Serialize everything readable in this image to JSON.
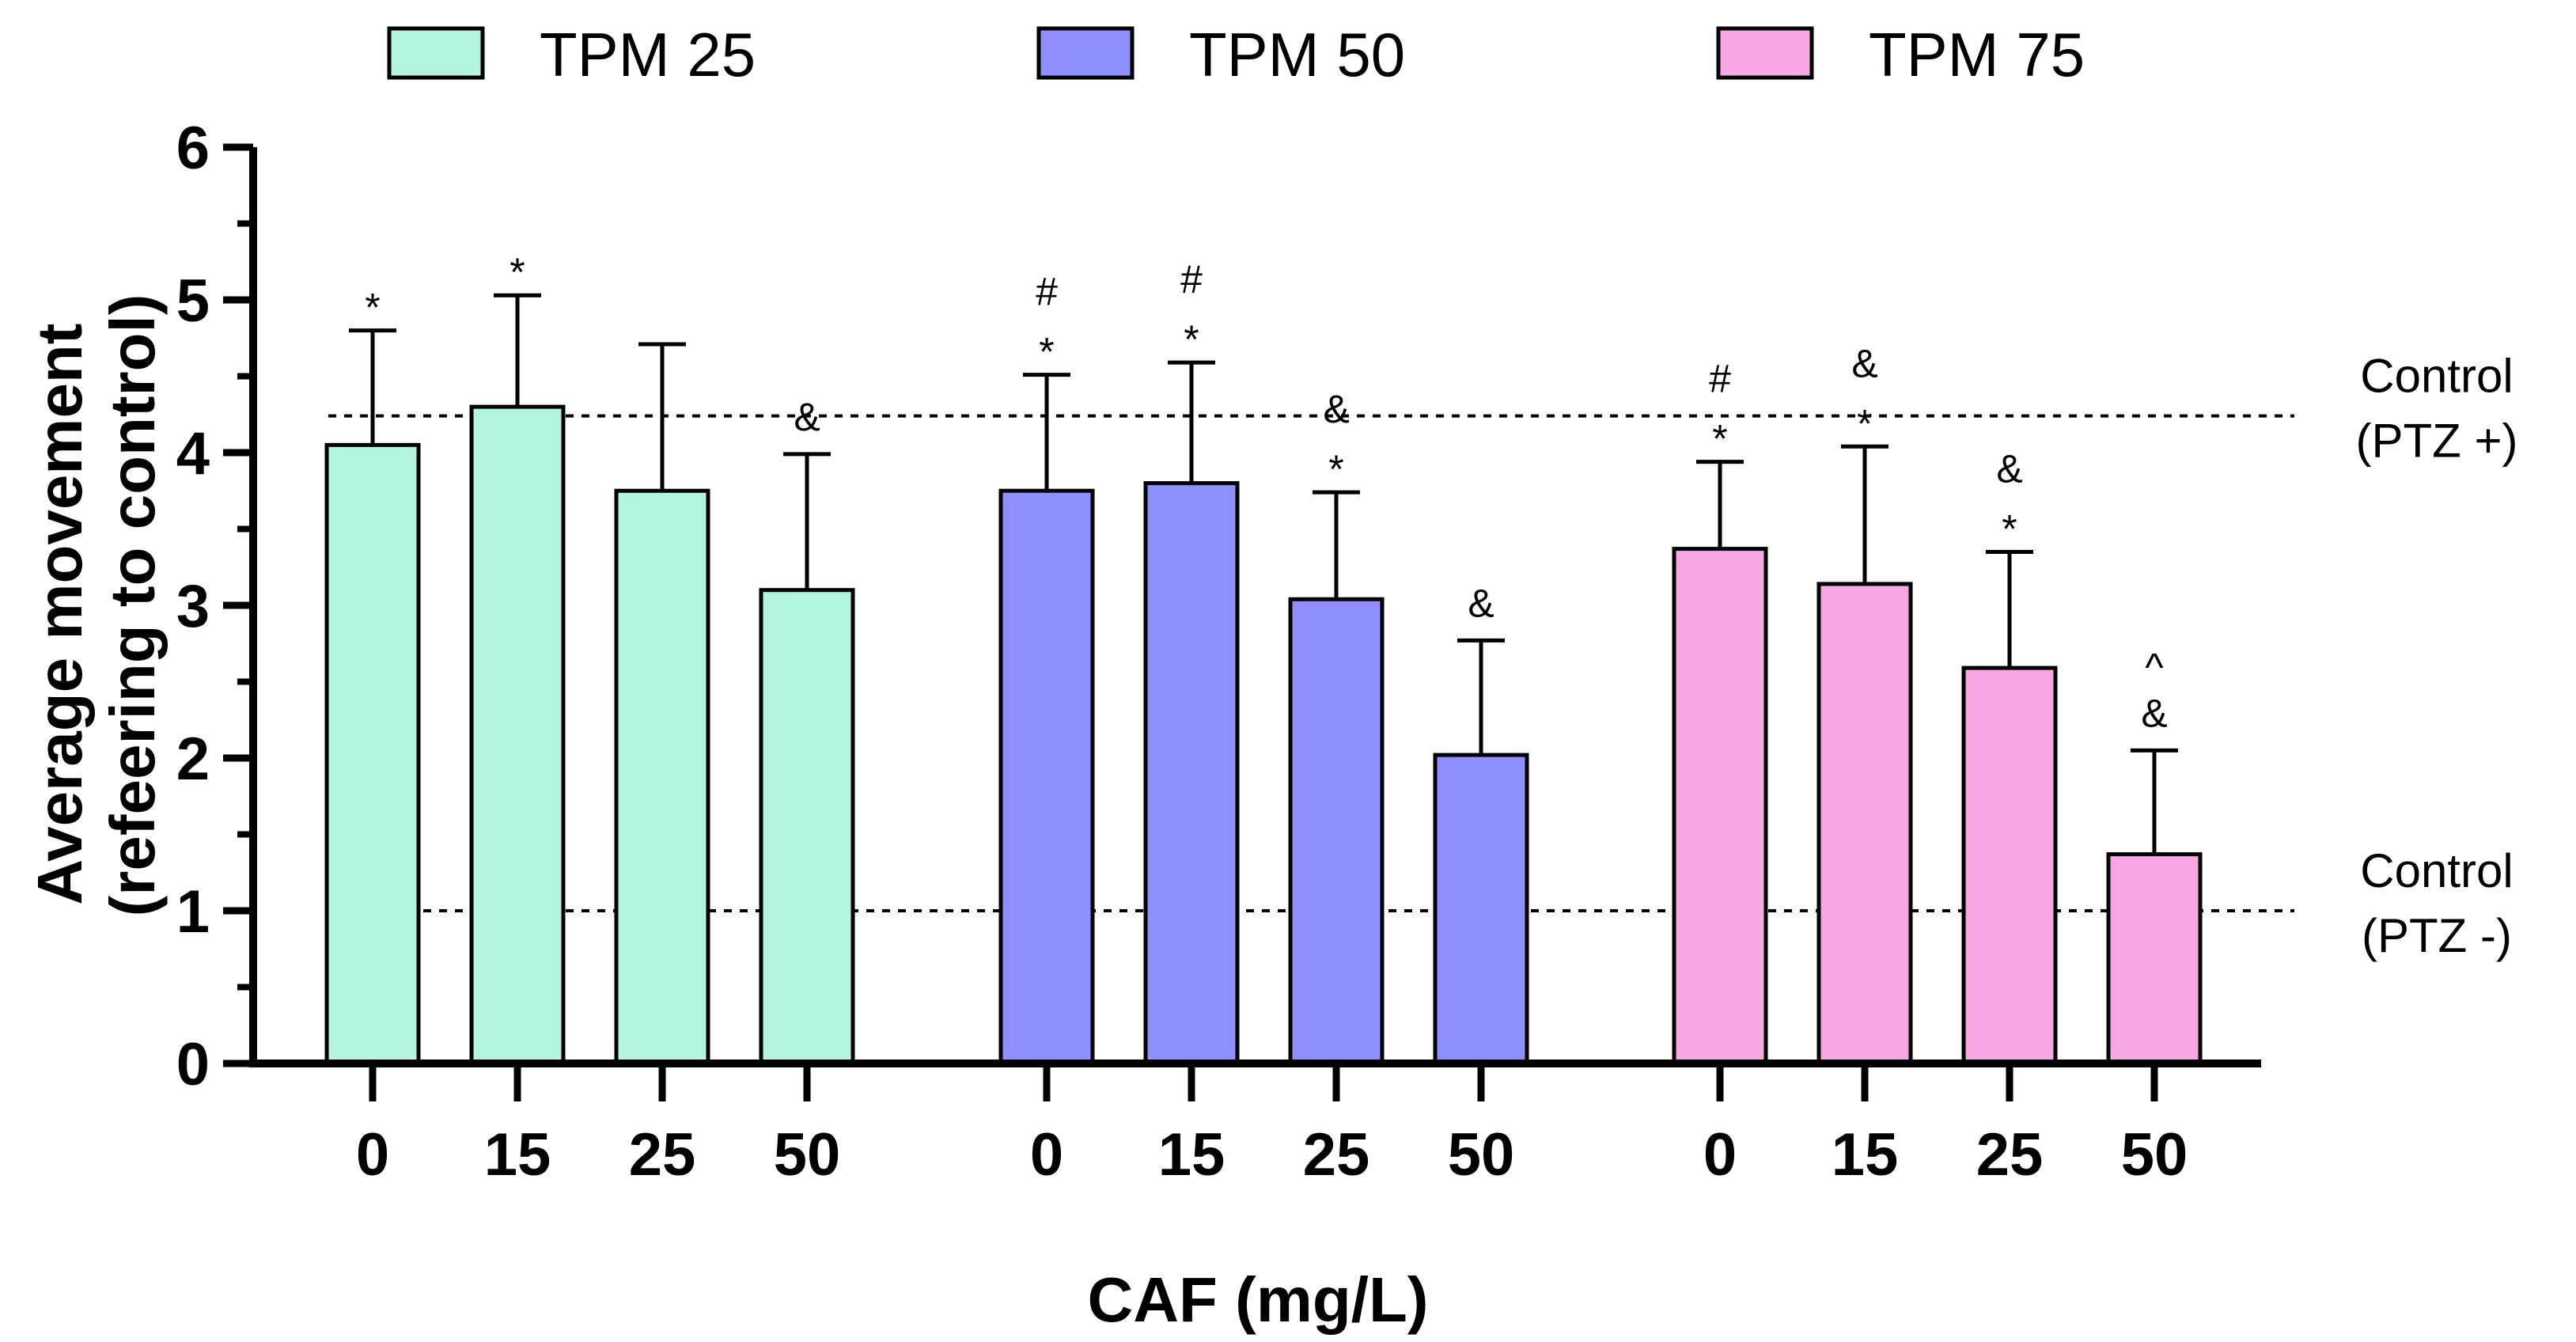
{
  "chart_data": {
    "type": "bar",
    "title": "",
    "xlabel": "CAF (mg/L)",
    "ylabel_lines": [
      "Average movement",
      "(refeering to control)"
    ],
    "ylim": [
      0,
      6
    ],
    "yticks": [
      0,
      1,
      2,
      3,
      4,
      5,
      6
    ],
    "grid": false,
    "legend_position": "top",
    "categories": [
      "0",
      "15",
      "25",
      "50"
    ],
    "series": [
      {
        "name": "TPM 25",
        "color": "#b3f5de",
        "values": [
          4.05,
          4.3,
          3.75,
          3.1
        ],
        "errors": [
          0.75,
          0.73,
          0.96,
          0.89
        ],
        "marks": [
          [
            "*"
          ],
          [
            "*"
          ],
          [],
          [
            "&"
          ]
        ]
      },
      {
        "name": "TPM 50",
        "color": "#8f8fff",
        "values": [
          3.75,
          3.8,
          3.04,
          2.02
        ],
        "errors": [
          0.76,
          0.79,
          0.7,
          0.75
        ],
        "marks": [
          [
            "#",
            "*"
          ],
          [
            "#",
            "*"
          ],
          [
            "&",
            "*"
          ],
          [
            "&"
          ]
        ]
      },
      {
        "name": "TPM 75",
        "color": "#f7a8e4",
        "values": [
          3.37,
          3.14,
          2.59,
          1.37
        ],
        "errors": [
          0.57,
          0.9,
          0.76,
          0.68
        ],
        "marks": [
          [
            "#",
            "*"
          ],
          [
            "&",
            "*"
          ],
          [
            "&",
            "*"
          ],
          [
            "^",
            "&"
          ]
        ]
      }
    ],
    "reference_lines": [
      {
        "value": 4.24,
        "label_lines": [
          "Control",
          "(PTZ +)"
        ]
      },
      {
        "value": 1.0,
        "label_lines": [
          "Control",
          "(PTZ -)"
        ]
      }
    ]
  }
}
